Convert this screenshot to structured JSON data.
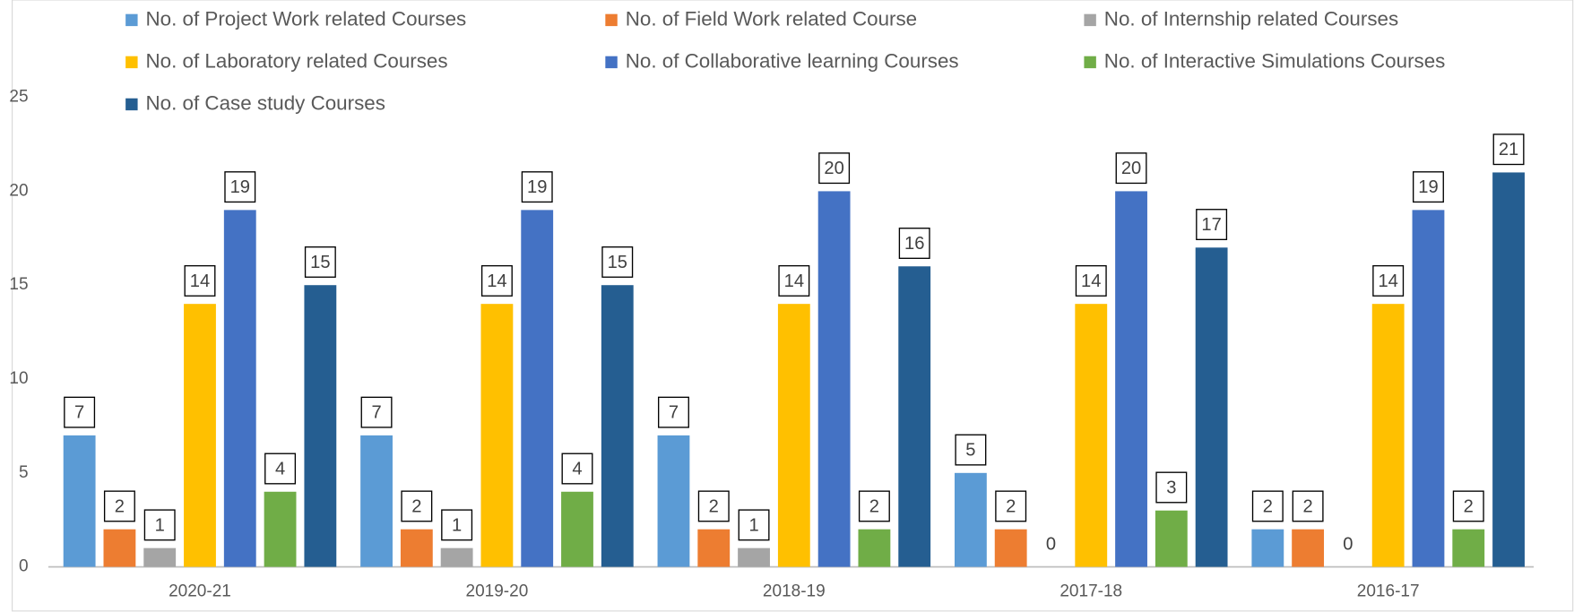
{
  "chart_data": {
    "type": "bar",
    "categories": [
      "2020-21",
      "2019-20",
      "2018-19",
      "2017-18",
      "2016-17"
    ],
    "series": [
      {
        "name": "No. of Project Work related Courses",
        "color": "#5b9bd5",
        "values": [
          7,
          7,
          7,
          5,
          2
        ]
      },
      {
        "name": "No. of Field Work related Course",
        "color": "#ed7d31",
        "values": [
          2,
          2,
          2,
          2,
          2
        ]
      },
      {
        "name": "No. of Internship related Courses",
        "color": "#a5a5a5",
        "values": [
          1,
          1,
          1,
          0,
          0
        ]
      },
      {
        "name": "No. of Laboratory  related Courses",
        "color": "#ffc000",
        "values": [
          14,
          14,
          14,
          14,
          14
        ]
      },
      {
        "name": "No. of Collaborative learning Courses",
        "color": "#4472c4",
        "values": [
          19,
          19,
          20,
          20,
          19
        ]
      },
      {
        "name": "No. of  Interactive Simulations  Courses",
        "color": "#70ad47",
        "values": [
          4,
          4,
          2,
          3,
          2
        ]
      },
      {
        "name": "No. of  Case study Courses",
        "color": "#255e91",
        "values": [
          15,
          15,
          16,
          17,
          21
        ]
      }
    ],
    "ylim": [
      0,
      25
    ],
    "yticks": [
      0,
      5,
      10,
      15,
      20,
      25
    ],
    "grid": false,
    "legend": "top"
  }
}
